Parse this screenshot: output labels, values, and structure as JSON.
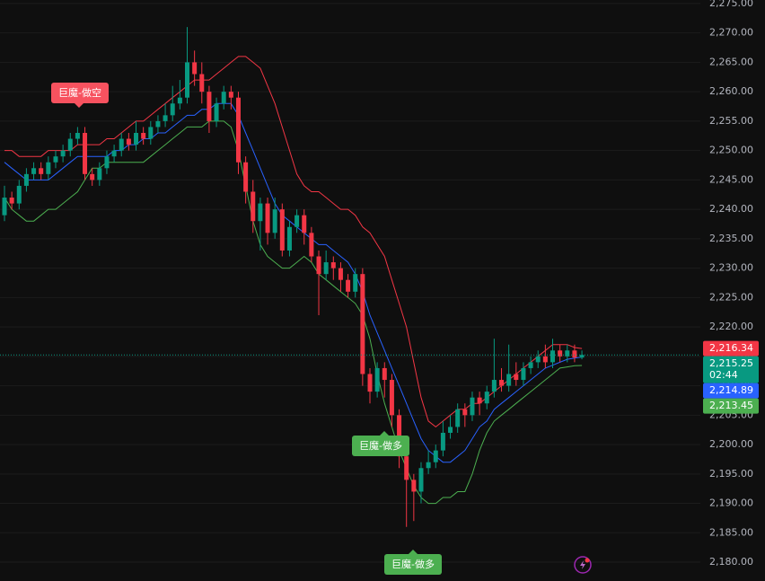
{
  "chart_data": {
    "type": "candlestick",
    "up_color": "#089981",
    "down_color": "#f23645",
    "ylim": [
      2176.8,
      2275.6
    ],
    "yticks": [
      {
        "value": 2275,
        "label": "2,275.00"
      },
      {
        "value": 2270,
        "label": "2,270.00"
      },
      {
        "value": 2265,
        "label": "2,265.00"
      },
      {
        "value": 2260,
        "label": "2,260.00"
      },
      {
        "value": 2255,
        "label": "2,255.00"
      },
      {
        "value": 2250,
        "label": "2,250.00"
      },
      {
        "value": 2245,
        "label": "2,245.00"
      },
      {
        "value": 2240,
        "label": "2,240.00"
      },
      {
        "value": 2235,
        "label": "2,235.00"
      },
      {
        "value": 2230,
        "label": "2,230.00"
      },
      {
        "value": 2225,
        "label": "2,225.00"
      },
      {
        "value": 2220,
        "label": "2,220.00"
      },
      {
        "value": 2215,
        "label": "2,215.00"
      },
      {
        "value": 2210,
        "label": "2,210.00"
      },
      {
        "value": 2205,
        "label": "2,205.00"
      },
      {
        "value": 2200,
        "label": "2,200.00"
      },
      {
        "value": 2195,
        "label": "2,195.00"
      },
      {
        "value": 2190,
        "label": "2,190.00"
      },
      {
        "value": 2185,
        "label": "2,185.00"
      },
      {
        "value": 2180,
        "label": "2,180.00"
      }
    ],
    "grid": true,
    "open": [
      2239,
      2242,
      2241,
      2244,
      2246,
      2247,
      2246,
      2248,
      2249,
      2250,
      2252,
      2253,
      2246,
      2245,
      2247,
      2249,
      2250,
      2252,
      2251,
      2253,
      2252,
      2254,
      2255,
      2256,
      2258,
      2259,
      2265,
      2263,
      2260,
      2255,
      2258,
      2260,
      2259,
      2248,
      2243,
      2238,
      2241,
      2236,
      2240,
      2233,
      2237,
      2239,
      2236,
      2232,
      2229,
      2231,
      2230,
      2228,
      2226,
      2229,
      2212,
      2209,
      2213,
      2211,
      2205,
      2198,
      2194,
      2192,
      2196,
      2197,
      2199,
      2202,
      2203,
      2206,
      2205,
      2208,
      2207,
      2209,
      2211,
      2210,
      2212,
      2211,
      2213,
      2214,
      2215,
      2214,
      2216,
      2215,
      2216,
      2214.8
    ],
    "high": [
      2244,
      2243,
      2245,
      2247,
      2248,
      2248,
      2249,
      2250,
      2251,
      2253,
      2254,
      2254,
      2247,
      2248,
      2250,
      2251,
      2253,
      2253,
      2255,
      2254,
      2255,
      2256,
      2258,
      2261,
      2262,
      2271,
      2267,
      2265,
      2261,
      2259,
      2261,
      2261,
      2260,
      2249,
      2245,
      2242,
      2242,
      2242,
      2241,
      2238,
      2240,
      2240,
      2237,
      2233,
      2233,
      2232,
      2231,
      2229,
      2230,
      2230,
      2213,
      2214,
      2214,
      2212,
      2206,
      2199,
      2195,
      2197,
      2199,
      2200,
      2204,
      2205,
      2207,
      2207,
      2209,
      2209,
      2210,
      2218,
      2213,
      2217,
      2214,
      2214,
      2215,
      2216,
      2217,
      2218,
      2217,
      2217,
      2217,
      2216
    ],
    "low": [
      2238,
      2240,
      2240,
      2243,
      2245,
      2245,
      2245,
      2247,
      2248,
      2249,
      2251,
      2245,
      2244,
      2244,
      2246,
      2248,
      2249,
      2250,
      2250,
      2251,
      2251,
      2253,
      2254,
      2255,
      2257,
      2258,
      2261,
      2258,
      2253,
      2254,
      2257,
      2257,
      2246,
      2241,
      2236,
      2233,
      2234,
      2235,
      2232,
      2232,
      2236,
      2234,
      2231,
      2222,
      2228,
      2228,
      2226,
      2225,
      2225,
      2210,
      2207,
      2208,
      2208,
      2203,
      2196,
      2186,
      2187,
      2190,
      2195,
      2196,
      2198,
      2201,
      2202,
      2203,
      2204,
      2205,
      2206,
      2208,
      2209,
      2209,
      2210,
      2210,
      2212,
      2213,
      2213,
      2213,
      2214,
      2214,
      2214,
      2214.5
    ],
    "close": [
      2242,
      2241,
      2244,
      2246,
      2247,
      2246,
      2248,
      2249,
      2250,
      2252,
      2253,
      2246,
      2245,
      2247,
      2249,
      2250,
      2252,
      2251,
      2253,
      2252,
      2254,
      2255,
      2256,
      2258,
      2259,
      2265,
      2263,
      2260,
      2255,
      2258,
      2260,
      2259,
      2248,
      2243,
      2238,
      2241,
      2236,
      2240,
      2233,
      2237,
      2239,
      2236,
      2232,
      2229,
      2231,
      2230,
      2228,
      2226,
      2229,
      2212,
      2209,
      2213,
      2211,
      2205,
      2198,
      2194,
      2192,
      2196,
      2197,
      2199,
      2202,
      2203,
      2206,
      2205,
      2208,
      2207,
      2209,
      2211,
      2210,
      2212,
      2211,
      2213,
      2214,
      2215,
      2214,
      2216,
      2215,
      2216,
      2214.8,
      2215.25
    ],
    "series": [
      {
        "color": "#f23645",
        "values": [
          2250,
          2250,
          2249,
          2249,
          2249,
          2249,
          2250,
          2250,
          2250,
          2250,
          2251,
          2251,
          2251,
          2251,
          2252,
          2252,
          2253,
          2254,
          2255,
          2255,
          2256,
          2257,
          2258,
          2259,
          2260,
          2261,
          2262,
          2262,
          2262,
          2263,
          2264,
          2265,
          2266,
          2266,
          2265,
          2264,
          2261,
          2258,
          2254,
          2250,
          2246,
          2244,
          2243,
          2243,
          2242,
          2241,
          2240,
          2240,
          2239,
          2237,
          2236,
          2234,
          2232,
          2228,
          2224,
          2220,
          2214,
          2208,
          2204,
          2203,
          2204,
          2205,
          2206,
          2206,
          2207,
          2207,
          2208,
          2209,
          2210,
          2211,
          2212,
          2213,
          2214,
          2215,
          2216,
          2217,
          2217,
          2217,
          2216.5,
          2216.34
        ]
      },
      {
        "color": "#2962ff",
        "values": [
          2248,
          2247,
          2246,
          2245,
          2245,
          2245,
          2245,
          2246,
          2247,
          2248,
          2249,
          2249,
          2249,
          2249,
          2249,
          2250,
          2250,
          2251,
          2251,
          2252,
          2252,
          2253,
          2253,
          2254,
          2255,
          2256,
          2256,
          2257,
          2257,
          2258,
          2258,
          2258,
          2256,
          2253,
          2250,
          2247,
          2244,
          2241,
          2239,
          2238,
          2237,
          2236,
          2235,
          2234,
          2234,
          2233,
          2232,
          2231,
          2229,
          2226,
          2222,
          2219,
          2216,
          2213,
          2210,
          2207,
          2204,
          2201,
          2199,
          2198,
          2197,
          2197,
          2198,
          2199,
          2201,
          2203,
          2204,
          2206,
          2207,
          2208,
          2209,
          2210,
          2211,
          2212,
          2213,
          2213.5,
          2214,
          2214.5,
          2214.7,
          2214.89
        ]
      },
      {
        "color": "#4caf50",
        "values": [
          2242,
          2240,
          2239,
          2238,
          2238,
          2239,
          2240,
          2240,
          2241,
          2242,
          2243,
          2245,
          2247,
          2247,
          2248,
          2248,
          2248,
          2248,
          2248,
          2248,
          2249,
          2250,
          2251,
          2252,
          2253,
          2254,
          2254,
          2254,
          2255,
          2255,
          2255,
          2254,
          2250,
          2244,
          2238,
          2234,
          2232,
          2231,
          2230,
          2230,
          2231,
          2232,
          2231,
          2229,
          2228,
          2227,
          2226,
          2225,
          2224,
          2222,
          2218,
          2212,
          2207,
          2203,
          2199,
          2196,
          2193,
          2191,
          2190,
          2190,
          2191,
          2191,
          2192,
          2192,
          2195,
          2199,
          2202,
          2204,
          2205,
          2206,
          2207,
          2208,
          2209,
          2210,
          2211,
          2212,
          2213,
          2213.2,
          2213.4,
          2213.45
        ]
      }
    ],
    "price_labels": [
      {
        "value": 2216.34,
        "label": "2,216.34",
        "color": "#f23645"
      },
      {
        "value": 2215.25,
        "label": "2,215.25",
        "color": "#089981",
        "countdown": "02:44"
      },
      {
        "value": 2214.89,
        "label": "2,214.89",
        "color": "#2962ff"
      },
      {
        "value": 2213.45,
        "label": "2,213.45",
        "color": "#4caf50"
      }
    ],
    "annotations": [
      {
        "text": "巨魔-做空",
        "color": "#f7525f"
      },
      {
        "text": "巨魔-做多",
        "color": "#4caf50"
      },
      {
        "text": "巨魔-做多",
        "color": "#4caf50"
      }
    ]
  }
}
